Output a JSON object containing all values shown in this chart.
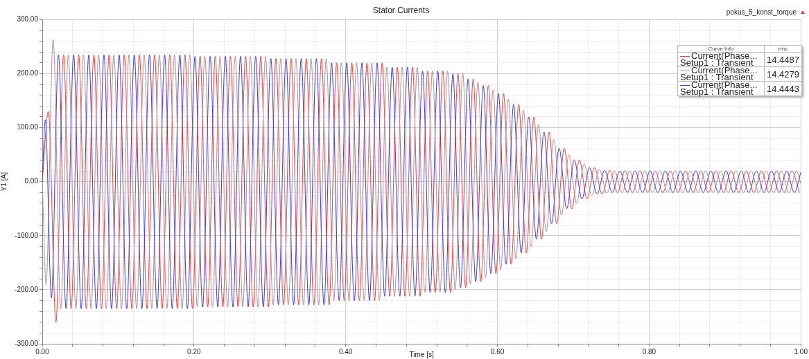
{
  "chart_data": {
    "type": "line",
    "title": "Stator Currents",
    "subtitle": "pokus_5_konst_torque",
    "xlabel": "Time [s]",
    "ylabel": "Y1 [A]",
    "legend_title": "Curve Info",
    "legend": "top right",
    "grid": true,
    "annotations": [
      "rms",
      "14.4487",
      "14.4279",
      "14.4443"
    ],
    "xlim": [
      0,
      1
    ],
    "ylim": [
      -300,
      300
    ],
    "xticks": [
      {
        "value": 0,
        "label": "0.00"
      },
      {
        "value": 0.04,
        "label": null
      },
      {
        "value": 0.08,
        "label": null
      },
      {
        "value": 0.12,
        "label": null
      },
      {
        "value": 0.16,
        "label": null
      },
      {
        "value": 0.2,
        "label": "0.20"
      },
      {
        "value": 0.24,
        "label": null
      },
      {
        "value": 0.28,
        "label": null
      },
      {
        "value": 0.32,
        "label": null
      },
      {
        "value": 0.36,
        "label": null
      },
      {
        "value": 0.4,
        "label": "0.40"
      },
      {
        "value": 0.44,
        "label": null
      },
      {
        "value": 0.48,
        "label": null
      },
      {
        "value": 0.52,
        "label": null
      },
      {
        "value": 0.56,
        "label": null
      },
      {
        "value": 0.6,
        "label": "0.60"
      },
      {
        "value": 0.64,
        "label": null
      },
      {
        "value": 0.68,
        "label": null
      },
      {
        "value": 0.72,
        "label": null
      },
      {
        "value": 0.76,
        "label": null
      },
      {
        "value": 0.8,
        "label": "0.80"
      },
      {
        "value": 0.84,
        "label": null
      },
      {
        "value": 0.88,
        "label": null
      },
      {
        "value": 0.92,
        "label": null
      },
      {
        "value": 0.96,
        "label": null
      },
      {
        "value": 1,
        "label": "1.00"
      }
    ],
    "yticks": [
      {
        "value": -300,
        "label": "-300.00"
      },
      {
        "value": -280,
        "label": null
      },
      {
        "value": -260,
        "label": null
      },
      {
        "value": -240,
        "label": null
      },
      {
        "value": -220,
        "label": null
      },
      {
        "value": -200,
        "label": "-200.00"
      },
      {
        "value": -180,
        "label": null
      },
      {
        "value": -160,
        "label": null
      },
      {
        "value": -140,
        "label": null
      },
      {
        "value": -120,
        "label": null
      },
      {
        "value": -100,
        "label": "-100.00"
      },
      {
        "value": -80,
        "label": null
      },
      {
        "value": -60,
        "label": null
      },
      {
        "value": -40,
        "label": null
      },
      {
        "value": -20,
        "label": null
      },
      {
        "value": 0,
        "label": "0.00"
      },
      {
        "value": 20,
        "label": null
      },
      {
        "value": 40,
        "label": null
      },
      {
        "value": 60,
        "label": null
      },
      {
        "value": 80,
        "label": null
      },
      {
        "value": 100,
        "label": "100.00"
      },
      {
        "value": 120,
        "label": null
      },
      {
        "value": 140,
        "label": null
      },
      {
        "value": 160,
        "label": null
      },
      {
        "value": 180,
        "label": null
      },
      {
        "value": 200,
        "label": "200.00"
      },
      {
        "value": 220,
        "label": null
      },
      {
        "value": 240,
        "label": null
      },
      {
        "value": 260,
        "label": null
      },
      {
        "value": 280,
        "label": null
      },
      {
        "value": 300,
        "label": "300.00"
      }
    ],
    "series": [
      {
        "name": "Current(Phase... Setup1 : Transient",
        "color": "#ff3b3b",
        "x": [
          0,
          0.008,
          0.018,
          0.028,
          0.038,
          0.048,
          0.058,
          0.068,
          0.078,
          0.088,
          0.098,
          0.108,
          0.118,
          0.128,
          0.138,
          0.148,
          0.158,
          0.168,
          0.178,
          0.188,
          0.198,
          0.208,
          0.218,
          0.228,
          0.238,
          0.248,
          0.258,
          0.268,
          0.278,
          0.288,
          0.298,
          0.308,
          0.318,
          0.328,
          0.338,
          0.348,
          0.358,
          0.368,
          0.378,
          0.388,
          0.398,
          0.408,
          0.418,
          0.428,
          0.438,
          0.448,
          0.458,
          0.468,
          0.478,
          0.488,
          0.498,
          0.508,
          0.518,
          0.528,
          0.538,
          0.548,
          0.558,
          0.568,
          0.578,
          0.588,
          0.598,
          0.608,
          0.618,
          0.628,
          0.638,
          0.648,
          0.658,
          0.668,
          0.678,
          0.688,
          0.698,
          0.708,
          0.718,
          0.728,
          0.738,
          0.748,
          0.758,
          0.768,
          0.778,
          0.788,
          0.798,
          0.808,
          0.818,
          0.828,
          0.838,
          0.848,
          0.858,
          0.868,
          0.878,
          0.888,
          0.898,
          0.908,
          0.918,
          0.928,
          0.938,
          0.948,
          0.958,
          0.968,
          0.978,
          0.988,
          0.998
        ],
        "values": [
          0,
          130,
          -260,
          235,
          -235,
          235,
          -235,
          235,
          -235,
          235,
          -235,
          235,
          -235,
          235,
          -235,
          235,
          -235,
          235,
          -235,
          235,
          -235,
          232,
          -232,
          232,
          -232,
          232,
          -232,
          232,
          -232,
          232,
          -232,
          228,
          -228,
          228,
          -228,
          228,
          -228,
          228,
          -228,
          220,
          -220,
          220,
          -220,
          220,
          -220,
          220,
          -212,
          212,
          -212,
          212,
          -212,
          205,
          -205,
          205,
          -205,
          200,
          -196,
          190,
          -185,
          178,
          -170,
          163,
          -153,
          143,
          -132,
          120,
          -106,
          92,
          -78,
          62,
          -50,
          40,
          -32,
          26,
          -23,
          21,
          -20,
          20,
          -20,
          20,
          -20,
          20,
          -20,
          20,
          -20,
          20,
          -20,
          20,
          -20,
          20,
          -20,
          20,
          -20,
          20,
          -20,
          20,
          -20,
          20,
          -20,
          20,
          -20
        ]
      },
      {
        "name": "Current(Phase... Setup1 : Transient",
        "color": "#b58e98",
        "x": [
          0,
          0.005,
          0.0143,
          0.0243,
          0.0343,
          0.0443,
          0.0543,
          0.0643,
          0.0743,
          0.0843,
          0.0943,
          0.1043,
          0.1143,
          0.1243,
          0.1343,
          0.1443,
          0.1543,
          0.1643,
          0.1743,
          0.1843,
          0.1943,
          0.2043,
          0.2143,
          0.2243,
          0.2343,
          0.2443,
          0.2543,
          0.2643,
          0.2743,
          0.2843,
          0.2943,
          0.3043,
          0.3143,
          0.3243,
          0.3343,
          0.3443,
          0.3543,
          0.3643,
          0.3743,
          0.3843,
          0.3943,
          0.4043,
          0.4143,
          0.4243,
          0.4343,
          0.4443,
          0.4543,
          0.4643,
          0.4743,
          0.4843,
          0.4943,
          0.5043,
          0.5143,
          0.5243,
          0.5343,
          0.5443,
          0.5543,
          0.5643,
          0.5743,
          0.5843,
          0.5943,
          0.6043,
          0.6143,
          0.6243,
          0.6343,
          0.6443,
          0.6543,
          0.6643,
          0.6743,
          0.6843,
          0.6943,
          0.7043,
          0.7143,
          0.7243,
          0.7343,
          0.7443,
          0.7543,
          0.7643,
          0.7743,
          0.7843,
          0.7943,
          0.8043,
          0.8143,
          0.8243,
          0.8343,
          0.8443,
          0.8543,
          0.8643,
          0.8743,
          0.8843,
          0.8943,
          0.9043,
          0.9143,
          0.9243,
          0.9343,
          0.9443,
          0.9543,
          0.9643,
          0.9743,
          0.9843,
          0.9943,
          1
        ],
        "values": [
          0,
          -190,
          263,
          -235,
          235,
          -235,
          235,
          -235,
          235,
          -235,
          235,
          -235,
          235,
          -235,
          235,
          -235,
          235,
          -235,
          235,
          -235,
          235,
          -232,
          232,
          -232,
          232,
          -232,
          232,
          -232,
          232,
          -232,
          232,
          -228,
          228,
          -228,
          228,
          -228,
          228,
          -228,
          228,
          -220,
          220,
          -220,
          220,
          -220,
          220,
          -220,
          212,
          -212,
          212,
          -212,
          212,
          -205,
          205,
          -205,
          205,
          -200,
          200,
          -190,
          185,
          -178,
          170,
          -163,
          153,
          -143,
          132,
          -120,
          106,
          -92,
          78,
          -62,
          50,
          -40,
          32,
          -26,
          23,
          -21,
          20,
          -20,
          20,
          -20,
          20,
          -20,
          20,
          -20,
          20,
          -20,
          20,
          -20,
          20,
          -20,
          20,
          -20,
          20,
          -20,
          20,
          -20,
          20,
          -20,
          20,
          -20,
          20,
          -4
        ]
      },
      {
        "name": "Current(Phase... Setup1 : Transient",
        "color": "#3b3bff",
        "x": [
          0,
          0.004,
          0.012,
          0.0213,
          0.0313,
          0.0413,
          0.0513,
          0.0613,
          0.0713,
          0.0813,
          0.0913,
          0.1013,
          0.1113,
          0.1213,
          0.1313,
          0.1413,
          0.1513,
          0.1613,
          0.1713,
          0.1813,
          0.1913,
          0.2013,
          0.2113,
          0.2213,
          0.2313,
          0.2413,
          0.2513,
          0.2613,
          0.2713,
          0.2813,
          0.2913,
          0.3013,
          0.3113,
          0.3213,
          0.3313,
          0.3413,
          0.3513,
          0.3613,
          0.3713,
          0.3813,
          0.3913,
          0.4013,
          0.4113,
          0.4213,
          0.4313,
          0.4413,
          0.4513,
          0.4613,
          0.4713,
          0.4813,
          0.4913,
          0.5013,
          0.5113,
          0.5213,
          0.5313,
          0.5413,
          0.5513,
          0.5613,
          0.5713,
          0.5813,
          0.5913,
          0.6013,
          0.6113,
          0.6213,
          0.6313,
          0.6413,
          0.6513,
          0.6613,
          0.6713,
          0.6813,
          0.6913,
          0.7013,
          0.7113,
          0.7213,
          0.7313,
          0.7413,
          0.7513,
          0.7613,
          0.7713,
          0.7813,
          0.7913,
          0.8013,
          0.8113,
          0.8213,
          0.8313,
          0.8413,
          0.8513,
          0.8613,
          0.8713,
          0.8813,
          0.8913,
          0.9013,
          0.9113,
          0.9213,
          0.9313,
          0.9413,
          0.9513,
          0.9613,
          0.9713,
          0.9813,
          0.9913,
          1
        ],
        "values": [
          0,
          115,
          -215,
          235,
          -235,
          235,
          -235,
          235,
          -235,
          235,
          -235,
          235,
          -235,
          235,
          -235,
          235,
          -235,
          235,
          -235,
          235,
          -235,
          232,
          -232,
          232,
          -232,
          232,
          -232,
          232,
          -232,
          232,
          -232,
          228,
          -228,
          228,
          -228,
          228,
          -228,
          228,
          -228,
          220,
          -220,
          220,
          -220,
          220,
          -220,
          220,
          -212,
          212,
          -212,
          212,
          -212,
          205,
          -205,
          205,
          -205,
          200,
          -196,
          190,
          -185,
          178,
          -170,
          163,
          -153,
          143,
          -132,
          120,
          -106,
          92,
          -78,
          62,
          -50,
          40,
          -32,
          26,
          -23,
          21,
          -20,
          20,
          -20,
          20,
          -20,
          20,
          -20,
          20,
          -20,
          20,
          -20,
          20,
          -20,
          20,
          -20,
          20,
          -20,
          20,
          -20,
          20,
          -20,
          20,
          -20,
          20,
          -20,
          18
        ]
      }
    ]
  }
}
